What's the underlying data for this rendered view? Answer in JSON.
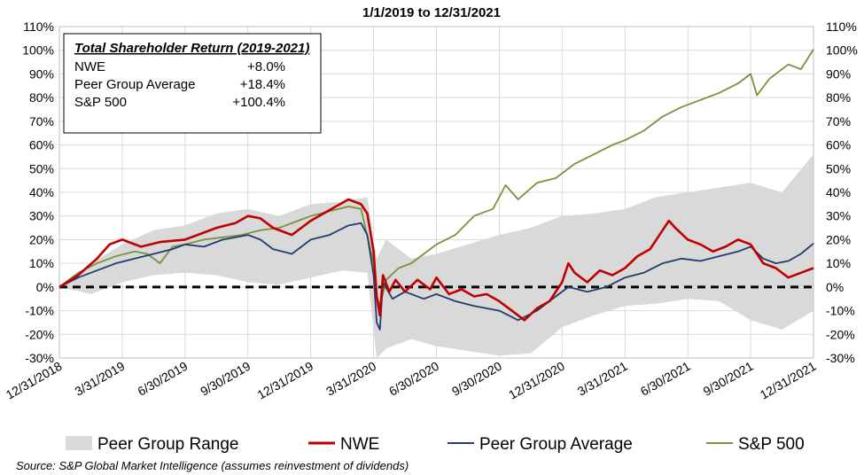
{
  "chart_data": {
    "type": "line",
    "title": "1/1/2019 to 12/31/2021",
    "y_ticks": [
      "110%",
      "100%",
      "90%",
      "80%",
      "70%",
      "60%",
      "50%",
      "40%",
      "30%",
      "20%",
      "10%",
      "0%",
      "-10%",
      "-20%",
      "-30%"
    ],
    "y_ticks_right": [
      "110%",
      "100%",
      "90%",
      "80%",
      "70%",
      "60%",
      "50%",
      "40%",
      "30%",
      "20%",
      "10%",
      "0%",
      "-10%",
      "-20%",
      "-30%"
    ],
    "x_ticks": [
      "12/31/2018",
      "3/31/2019",
      "6/30/2019",
      "9/30/2019",
      "12/31/2019",
      "3/31/2020",
      "6/30/2020",
      "9/30/2020",
      "12/31/2020",
      "3/31/2021",
      "6/30/2021",
      "9/30/2021",
      "12/31/2021"
    ],
    "ylim": [
      -30,
      110
    ],
    "x_unit": "quarters since 12/31/2018",
    "xlim": [
      0,
      12
    ],
    "reference_line": 0,
    "series": [
      {
        "name": "NWE",
        "color": "#c00000",
        "points": [
          [
            0,
            0
          ],
          [
            0.3,
            5
          ],
          [
            0.6,
            12
          ],
          [
            0.8,
            18
          ],
          [
            1,
            20
          ],
          [
            1.3,
            17
          ],
          [
            1.6,
            19
          ],
          [
            2,
            20
          ],
          [
            2.2,
            22
          ],
          [
            2.5,
            25
          ],
          [
            2.8,
            27
          ],
          [
            3,
            30
          ],
          [
            3.2,
            29
          ],
          [
            3.4,
            25
          ],
          [
            3.7,
            22
          ],
          [
            4,
            28
          ],
          [
            4.2,
            31
          ],
          [
            4.4,
            34
          ],
          [
            4.6,
            37
          ],
          [
            4.8,
            35
          ],
          [
            4.9,
            31
          ],
          [
            5.0,
            15
          ],
          [
            5.05,
            -4
          ],
          [
            5.1,
            -12
          ],
          [
            5.15,
            5
          ],
          [
            5.25,
            -2
          ],
          [
            5.35,
            3
          ],
          [
            5.5,
            -2
          ],
          [
            5.7,
            3
          ],
          [
            5.9,
            -1
          ],
          [
            6,
            4
          ],
          [
            6.2,
            -3
          ],
          [
            6.4,
            -1
          ],
          [
            6.6,
            -4
          ],
          [
            6.8,
            -3
          ],
          [
            7,
            -6
          ],
          [
            7.2,
            -10
          ],
          [
            7.4,
            -14
          ],
          [
            7.6,
            -9
          ],
          [
            7.8,
            -6
          ],
          [
            8,
            2
          ],
          [
            8.1,
            10
          ],
          [
            8.2,
            6
          ],
          [
            8.4,
            2
          ],
          [
            8.6,
            7
          ],
          [
            8.8,
            5
          ],
          [
            9,
            8
          ],
          [
            9.2,
            13
          ],
          [
            9.4,
            16
          ],
          [
            9.6,
            24
          ],
          [
            9.7,
            28
          ],
          [
            9.8,
            25
          ],
          [
            10,
            20
          ],
          [
            10.2,
            18
          ],
          [
            10.4,
            15
          ],
          [
            10.6,
            17
          ],
          [
            10.8,
            20
          ],
          [
            11,
            18
          ],
          [
            11.2,
            10
          ],
          [
            11.4,
            8
          ],
          [
            11.6,
            4
          ],
          [
            11.8,
            6
          ],
          [
            12,
            8
          ]
        ]
      },
      {
        "name": "Peer Group Average",
        "color": "#1f3d6e",
        "points": [
          [
            0,
            0
          ],
          [
            0.3,
            4
          ],
          [
            0.6,
            7
          ],
          [
            0.9,
            10
          ],
          [
            1.2,
            12
          ],
          [
            1.5,
            14
          ],
          [
            1.8,
            16
          ],
          [
            2,
            18
          ],
          [
            2.3,
            17
          ],
          [
            2.6,
            20
          ],
          [
            3,
            22
          ],
          [
            3.2,
            20
          ],
          [
            3.4,
            16
          ],
          [
            3.7,
            14
          ],
          [
            4,
            20
          ],
          [
            4.3,
            22
          ],
          [
            4.6,
            26
          ],
          [
            4.8,
            27
          ],
          [
            4.9,
            22
          ],
          [
            5.0,
            5
          ],
          [
            5.05,
            -15
          ],
          [
            5.1,
            -18
          ],
          [
            5.15,
            2
          ],
          [
            5.3,
            -5
          ],
          [
            5.5,
            -2
          ],
          [
            5.8,
            -5
          ],
          [
            6,
            -3
          ],
          [
            6.3,
            -6
          ],
          [
            6.6,
            -8
          ],
          [
            7,
            -10
          ],
          [
            7.3,
            -14
          ],
          [
            7.6,
            -10
          ],
          [
            7.9,
            -4
          ],
          [
            8.1,
            0
          ],
          [
            8.4,
            -2
          ],
          [
            8.7,
            0
          ],
          [
            9,
            4
          ],
          [
            9.3,
            6
          ],
          [
            9.6,
            10
          ],
          [
            9.9,
            12
          ],
          [
            10.2,
            11
          ],
          [
            10.5,
            13
          ],
          [
            10.8,
            15
          ],
          [
            11,
            17
          ],
          [
            11.2,
            12
          ],
          [
            11.4,
            10
          ],
          [
            11.6,
            11
          ],
          [
            11.8,
            14
          ],
          [
            12,
            18.4
          ]
        ]
      },
      {
        "name": "S&P 500",
        "color": "#77933c",
        "points": [
          [
            0,
            0
          ],
          [
            0.3,
            6
          ],
          [
            0.6,
            10
          ],
          [
            0.9,
            13
          ],
          [
            1.2,
            15
          ],
          [
            1.4,
            14
          ],
          [
            1.6,
            10
          ],
          [
            1.8,
            17
          ],
          [
            2,
            18
          ],
          [
            2.3,
            20
          ],
          [
            2.6,
            21
          ],
          [
            2.9,
            22
          ],
          [
            3.2,
            24
          ],
          [
            3.5,
            25
          ],
          [
            3.8,
            28
          ],
          [
            4,
            30
          ],
          [
            4.3,
            32
          ],
          [
            4.6,
            34
          ],
          [
            4.8,
            33
          ],
          [
            5.0,
            10
          ],
          [
            5.05,
            -4
          ],
          [
            5.1,
            -8
          ],
          [
            5.2,
            3
          ],
          [
            5.4,
            8
          ],
          [
            5.6,
            10
          ],
          [
            5.8,
            14
          ],
          [
            6,
            18
          ],
          [
            6.3,
            22
          ],
          [
            6.6,
            30
          ],
          [
            6.9,
            33
          ],
          [
            7.1,
            43
          ],
          [
            7.3,
            37
          ],
          [
            7.6,
            44
          ],
          [
            7.9,
            46
          ],
          [
            8.2,
            52
          ],
          [
            8.5,
            56
          ],
          [
            8.8,
            60
          ],
          [
            9,
            62
          ],
          [
            9.3,
            66
          ],
          [
            9.6,
            72
          ],
          [
            9.9,
            76
          ],
          [
            10.2,
            79
          ],
          [
            10.5,
            82
          ],
          [
            10.8,
            86
          ],
          [
            11,
            90
          ],
          [
            11.1,
            81
          ],
          [
            11.3,
            88
          ],
          [
            11.6,
            94
          ],
          [
            11.8,
            92
          ],
          [
            12,
            100.4
          ]
        ]
      },
      {
        "name": "Peer Group Range (upper)",
        "color": "#d9d9d9",
        "points": [
          [
            0,
            0
          ],
          [
            0.5,
            10
          ],
          [
            1,
            18
          ],
          [
            1.5,
            24
          ],
          [
            2,
            26
          ],
          [
            2.5,
            31
          ],
          [
            3,
            33
          ],
          [
            3.5,
            30
          ],
          [
            4,
            35
          ],
          [
            4.5,
            36
          ],
          [
            4.9,
            38
          ],
          [
            5.05,
            12
          ],
          [
            5.2,
            20
          ],
          [
            5.6,
            12
          ],
          [
            6,
            14
          ],
          [
            6.5,
            18
          ],
          [
            7,
            22
          ],
          [
            7.5,
            25
          ],
          [
            8,
            30
          ],
          [
            8.5,
            31
          ],
          [
            9,
            33
          ],
          [
            9.5,
            38
          ],
          [
            10,
            40
          ],
          [
            10.5,
            42
          ],
          [
            11,
            44
          ],
          [
            11.5,
            40
          ],
          [
            12,
            56
          ]
        ]
      },
      {
        "name": "Peer Group Range (lower)",
        "color": "#d9d9d9",
        "points": [
          [
            0,
            0
          ],
          [
            0.5,
            -3
          ],
          [
            1,
            2
          ],
          [
            1.5,
            5
          ],
          [
            2,
            6
          ],
          [
            2.5,
            5
          ],
          [
            3,
            2
          ],
          [
            3.5,
            1
          ],
          [
            4,
            4
          ],
          [
            4.5,
            7
          ],
          [
            4.9,
            6
          ],
          [
            5.05,
            -30
          ],
          [
            5.2,
            -26
          ],
          [
            5.6,
            -22
          ],
          [
            6,
            -25
          ],
          [
            6.5,
            -27
          ],
          [
            7,
            -29
          ],
          [
            7.5,
            -28
          ],
          [
            8,
            -17
          ],
          [
            8.5,
            -12
          ],
          [
            9,
            -8
          ],
          [
            9.5,
            -7
          ],
          [
            10,
            -5
          ],
          [
            10.5,
            -6
          ],
          [
            11,
            -14
          ],
          [
            11.5,
            -18
          ],
          [
            12,
            -10
          ]
        ]
      }
    ],
    "legend": [
      "Peer Group Range",
      "NWE",
      "Peer Group Average",
      "S&P 500"
    ]
  },
  "summary_box": {
    "title": "Total Shareholder Return (2019-2021)",
    "rows": [
      {
        "label": "NWE",
        "value": "+8.0%"
      },
      {
        "label": "Peer Group Average",
        "value": "+18.4%"
      },
      {
        "label": "S&P 500",
        "value": "+100.4%"
      }
    ]
  },
  "source": "Source:  S&P Global Market Intelligence (assumes reinvestment of dividends)"
}
